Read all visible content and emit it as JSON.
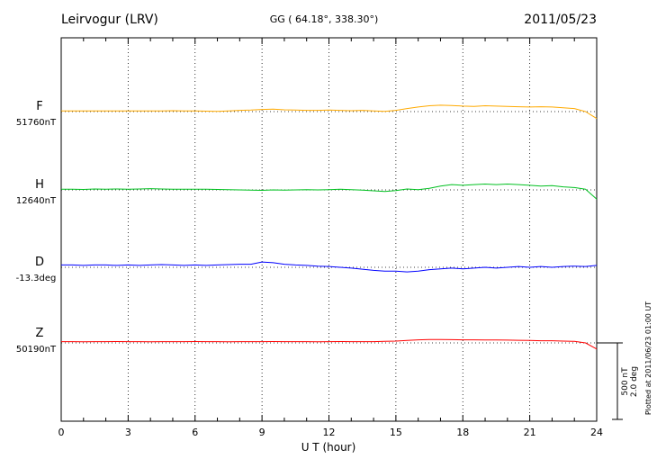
{
  "header": {
    "station": "Leirvogur (LRV)",
    "coords": "GG ( 64.18°, 338.30°)",
    "date": "2011/05/23"
  },
  "axis": {
    "xlabel": "U T (hour)",
    "ticks": [
      0,
      3,
      6,
      9,
      12,
      15,
      18,
      21,
      24
    ]
  },
  "scalebar": {
    "nt_label": "500 nT",
    "deg_label": "2.0 deg"
  },
  "footer": {
    "plotted_at": "Plotted at 2011/06/23 01:00 UT"
  },
  "chart_data": {
    "type": "line",
    "title": "Leirvogur (LRV) magnetogram 2011/05/23",
    "xlabel": "U T (hour)",
    "x_unit": "hour",
    "x_range": [
      0,
      24
    ],
    "x_step": 0.5,
    "grid": "dotted vertical lines every 3 hours, dotted horizontal baseline per trace",
    "scale": {
      "nT_per_bar": 500,
      "deg_per_bar": 2.0
    },
    "series": [
      {
        "name": "F",
        "baseline_label": "51760nT",
        "baseline_value": 51760,
        "unit": "nT",
        "color": "#ffaa00",
        "values": [
          5,
          5,
          4,
          5,
          5,
          4,
          5,
          5,
          4,
          5,
          6,
          5,
          5,
          3,
          2,
          5,
          8,
          10,
          14,
          16,
          12,
          10,
          8,
          8,
          10,
          8,
          6,
          8,
          5,
          2,
          8,
          20,
          30,
          38,
          42,
          40,
          36,
          34,
          38,
          36,
          34,
          32,
          30,
          32,
          30,
          25,
          20,
          0,
          -45
        ]
      },
      {
        "name": "H",
        "baseline_label": "12640nT",
        "baseline_value": 12640,
        "unit": "nT",
        "color": "#00c020",
        "values": [
          4,
          5,
          3,
          6,
          5,
          6,
          5,
          6,
          8,
          6,
          5,
          4,
          5,
          4,
          3,
          2,
          0,
          -2,
          -3,
          0,
          -2,
          0,
          2,
          0,
          2,
          4,
          2,
          -2,
          -6,
          -10,
          -4,
          6,
          2,
          10,
          25,
          35,
          30,
          35,
          38,
          35,
          38,
          35,
          30,
          25,
          28,
          20,
          15,
          5,
          -60
        ]
      },
      {
        "name": "D",
        "baseline_label": "-13.3deg",
        "baseline_value": -13.3,
        "unit": "deg",
        "color": "#0000ff",
        "values": [
          0.06,
          0.06,
          0.05,
          0.06,
          0.06,
          0.05,
          0.06,
          0.05,
          0.06,
          0.07,
          0.06,
          0.05,
          0.06,
          0.05,
          0.06,
          0.07,
          0.08,
          0.08,
          0.14,
          0.12,
          0.08,
          0.06,
          0.05,
          0.03,
          0.02,
          0.0,
          -0.02,
          -0.05,
          -0.08,
          -0.1,
          -0.1,
          -0.12,
          -0.1,
          -0.06,
          -0.04,
          -0.02,
          -0.04,
          -0.02,
          0.0,
          -0.02,
          0.0,
          0.02,
          0.0,
          0.02,
          0.0,
          0.02,
          0.03,
          0.02,
          0.05
        ]
      },
      {
        "name": "Z",
        "baseline_label": "50190nT",
        "baseline_value": 50190,
        "unit": "nT",
        "color": "#ff0000",
        "values": [
          8,
          8,
          7,
          8,
          8,
          9,
          8,
          8,
          7,
          8,
          8,
          8,
          9,
          8,
          8,
          7,
          8,
          8,
          8,
          9,
          8,
          8,
          8,
          7,
          8,
          9,
          8,
          8,
          8,
          10,
          12,
          16,
          20,
          22,
          22,
          21,
          20,
          20,
          19,
          19,
          18,
          17,
          16,
          14,
          14,
          12,
          10,
          0,
          -40
        ]
      }
    ]
  }
}
